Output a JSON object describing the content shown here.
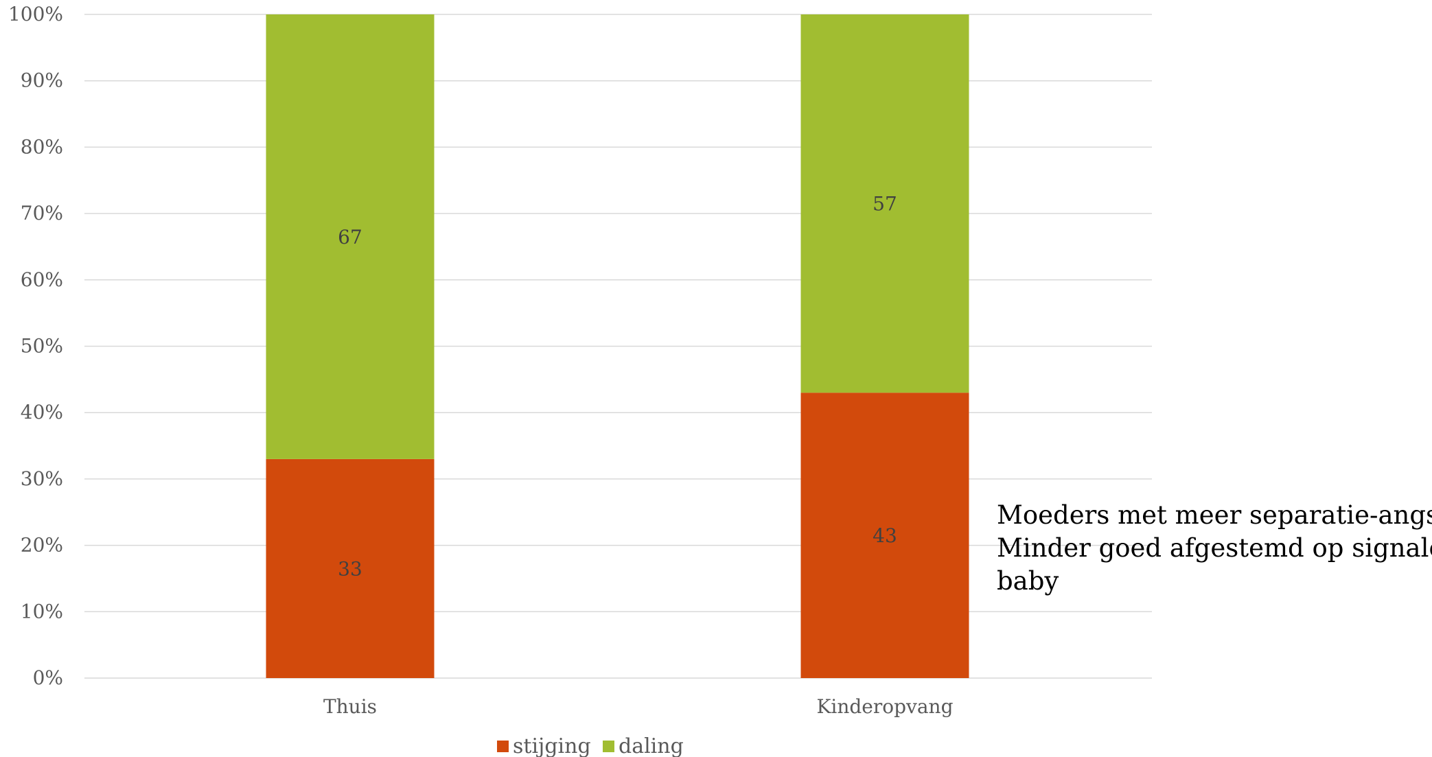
{
  "chart_data": {
    "type": "bar",
    "stacked": true,
    "percent": true,
    "categories": [
      "Thuis",
      "Kinderopvang"
    ],
    "series": [
      {
        "name": "stijging",
        "values": [
          33,
          43
        ],
        "color": "#D24A0C"
      },
      {
        "name": "daling",
        "values": [
          67,
          57
        ],
        "color": "#A1BD31"
      }
    ],
    "y_ticks": [
      "0%",
      "10%",
      "20%",
      "30%",
      "40%",
      "50%",
      "60%",
      "70%",
      "80%",
      "90%",
      "100%"
    ],
    "ylim": [
      0,
      100
    ],
    "grid": true,
    "legend_position": "bottom",
    "title": "",
    "xlabel": "",
    "ylabel": ""
  },
  "annotation": {
    "lines": [
      "Moeders met meer separatie-angst",
      "Minder goed afgestemd op signalen",
      "baby"
    ]
  },
  "colors": {
    "grid": "#D9D9D9",
    "axis_text": "#595959"
  }
}
